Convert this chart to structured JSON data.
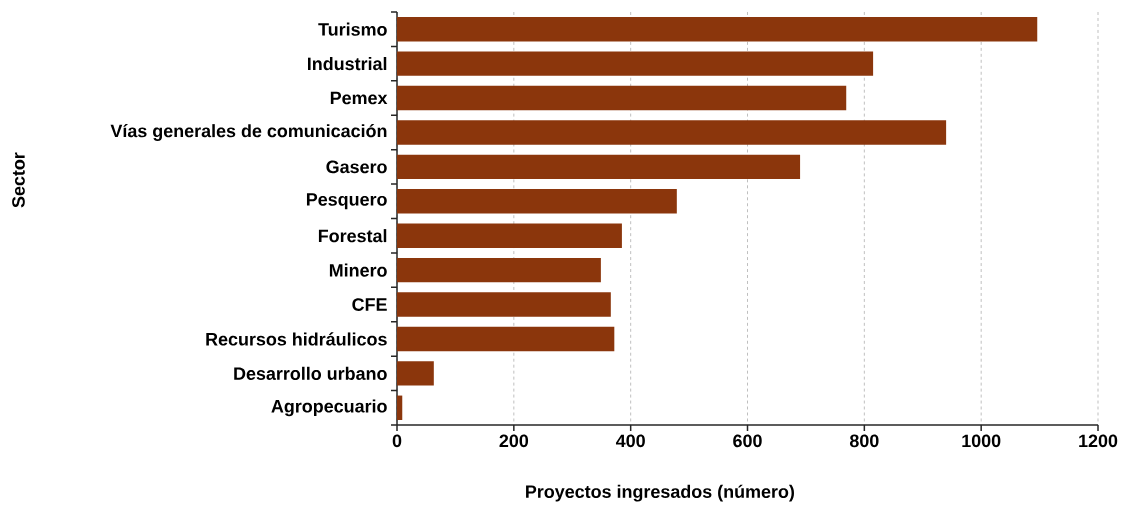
{
  "chart_data": {
    "type": "bar",
    "orientation": "horizontal",
    "xlabel": "Proyectos ingresados (número)",
    "ylabel": "Sector",
    "categories": [
      "Turismo",
      "Industrial",
      "Pemex",
      "Vías generales de comunicación",
      "Gasero",
      "Pesquero",
      "Forestal",
      "Minero",
      "CFE",
      "Recursos hidráulicos",
      "Desarrollo urbano",
      "Agropecuario"
    ],
    "values": [
      1096,
      815,
      769,
      940,
      690,
      479,
      385,
      349,
      366,
      372,
      63,
      9
    ],
    "color": "#8b360c",
    "xlim": [
      0,
      1200
    ],
    "xticks": [
      0,
      200,
      400,
      600,
      800,
      1000,
      1200
    ],
    "grid": "x"
  }
}
